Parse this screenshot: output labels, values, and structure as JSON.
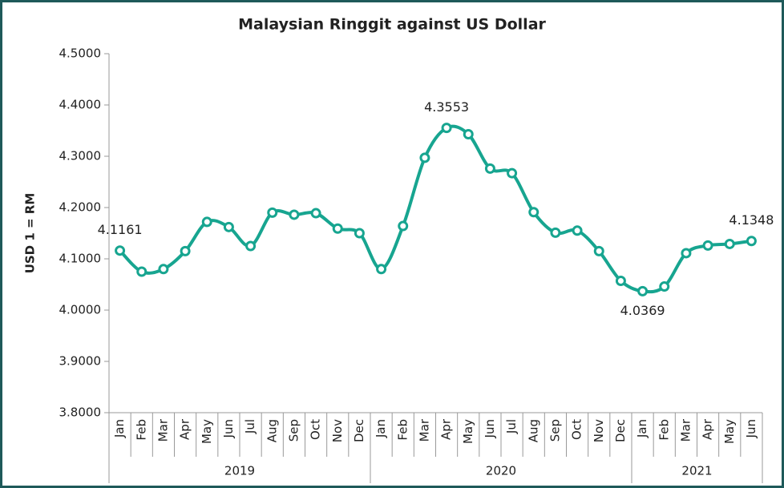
{
  "chart_data": {
    "type": "line",
    "title": "Malaysian Ringgit against US Dollar",
    "y_label": "USD 1 = RM",
    "category_groups": [
      {
        "label": "2019",
        "categories": [
          "Jan",
          "Feb",
          "Mar",
          "Apr",
          "May",
          "Jun",
          "Jul",
          "Aug",
          "Sep",
          "Oct",
          "Nov",
          "Dec"
        ]
      },
      {
        "label": "2020",
        "categories": [
          "Jan",
          "Feb",
          "Mar",
          "Apr",
          "May",
          "Jun",
          "Jul",
          "Aug",
          "Sep",
          "Oct",
          "Nov",
          "Dec"
        ]
      },
      {
        "label": "2021",
        "categories": [
          "Jan",
          "Feb",
          "Mar",
          "Apr",
          "May",
          "Jun"
        ]
      }
    ],
    "values": [
      4.1161,
      4.075,
      4.08,
      4.115,
      4.172,
      4.162,
      4.125,
      4.19,
      4.186,
      4.189,
      4.159,
      4.15,
      4.08,
      4.164,
      4.297,
      4.3553,
      4.343,
      4.276,
      4.267,
      4.191,
      4.151,
      4.155,
      4.115,
      4.057,
      4.0369,
      4.046,
      4.111,
      4.126,
      4.129,
      4.1348
    ],
    "value_labels": [
      "4.1161",
      null,
      null,
      null,
      null,
      null,
      null,
      null,
      null,
      null,
      null,
      null,
      null,
      null,
      null,
      "4.3553",
      null,
      null,
      null,
      null,
      null,
      null,
      null,
      null,
      "4.0369",
      null,
      null,
      null,
      null,
      "4.1348"
    ],
    "color": "#17a590",
    "ylim": [
      3.8,
      4.5
    ],
    "yticks": [
      {
        "value": 3.8,
        "label": "3.8000"
      },
      {
        "value": 3.9,
        "label": "3.9000"
      },
      {
        "value": 4.0,
        "label": "4.0000"
      },
      {
        "value": 4.1,
        "label": "4.1000"
      },
      {
        "value": 4.2,
        "label": "4.2000"
      },
      {
        "value": 4.3,
        "label": "4.3000"
      },
      {
        "value": 4.4,
        "label": "4.4000"
      },
      {
        "value": 4.5,
        "label": "4.5000"
      }
    ]
  }
}
